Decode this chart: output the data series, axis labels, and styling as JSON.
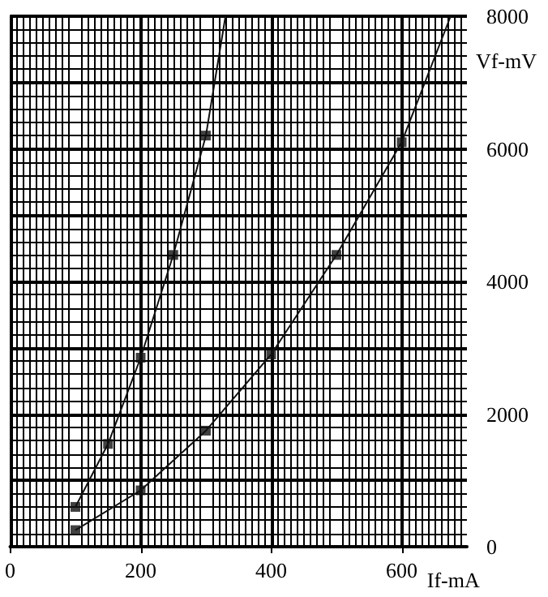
{
  "chart_data": {
    "type": "scatter",
    "xlabel": "If-mA",
    "ylabel": "Vf-mV",
    "xlim": [
      0,
      700
    ],
    "xticks": [
      0,
      200,
      400,
      600
    ],
    "ylim": [
      0,
      8000
    ],
    "yticks": [
      0,
      {
        "value": 1000,
        "label": null
      },
      2000,
      {
        "value": 3000,
        "label": null
      },
      4000,
      {
        "value": 5000,
        "label": null
      },
      6000,
      {
        "value": 7000,
        "label": null
      },
      8000
    ],
    "grid": true,
    "marker": "square",
    "series": [
      {
        "color": "#111111",
        "x": [
          100,
          150,
          200,
          250,
          300
        ],
        "values": [
          600,
          1550,
          2850,
          4400,
          6200
        ]
      },
      {
        "type": "line",
        "color": "#111111",
        "marker": "none",
        "x": [
          100,
          150,
          200,
          250,
          300,
          330
        ],
        "values": [
          600,
          1550,
          2850,
          4400,
          6200,
          8000
        ]
      },
      {
        "color": "#111111",
        "x": [
          100,
          200,
          300,
          400,
          500,
          600
        ],
        "values": [
          250,
          850,
          1750,
          2900,
          4400,
          6100
        ]
      },
      {
        "type": "line",
        "color": "#111111",
        "marker": "none",
        "x": [
          100,
          200,
          300,
          400,
          500,
          600,
          675
        ],
        "values": [
          250,
          850,
          1750,
          2900,
          4400,
          6100,
          8000
        ]
      }
    ]
  }
}
